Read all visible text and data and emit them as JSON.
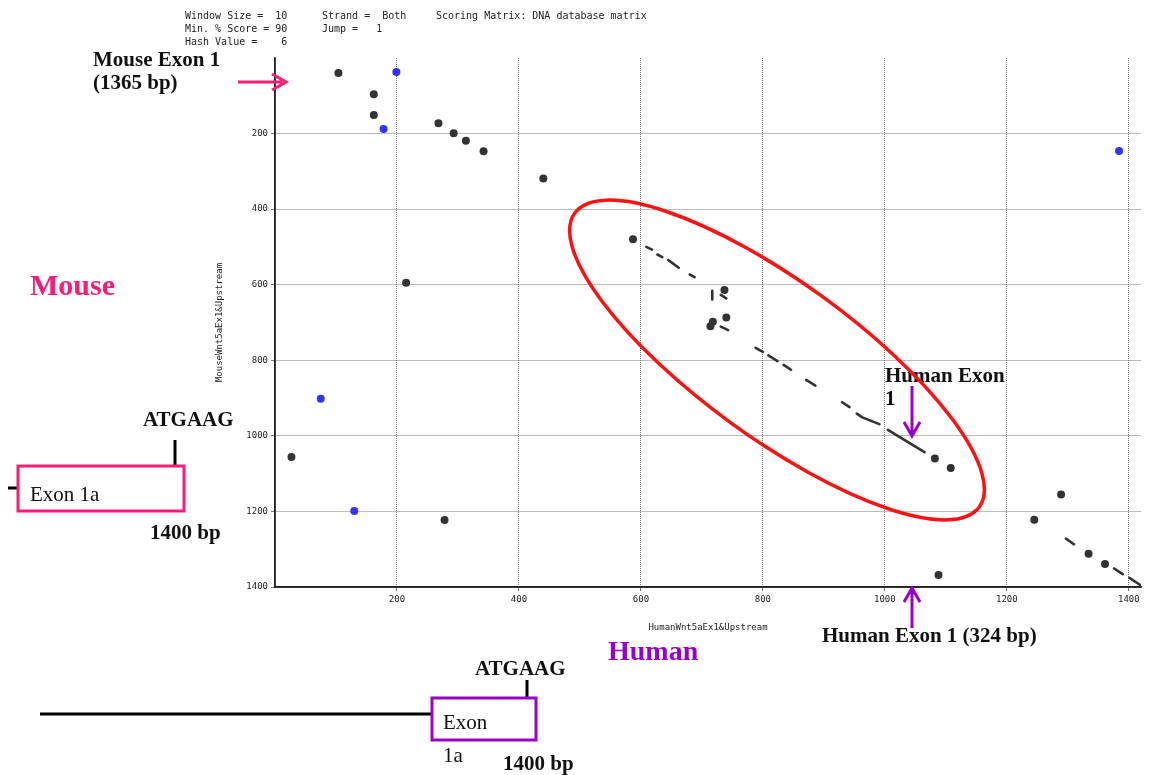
{
  "chart_data": {
    "type": "scatter",
    "xlabel": "HumanWnt5aEx1&Upstream",
    "ylabel": "MouseWnt5aEx1&Upstream",
    "xlim": [
      0,
      1420
    ],
    "ylim": [
      1400,
      0
    ],
    "xticks": [
      200,
      400,
      600,
      800,
      1000,
      1200,
      1400
    ],
    "yticks": [
      200,
      400,
      600,
      800,
      1000,
      1200,
      1400
    ],
    "grid": true,
    "series": [
      {
        "type": "scatter",
        "marker": "circle",
        "color": "#333333",
        "x": [
          104,
          162,
          313,
          342,
          440,
          215,
          27,
          278,
          737,
          714,
          718,
          740,
          1082,
          1289,
          1334,
          1088,
          162,
          268,
          293,
          587,
          1108,
          1245,
          1361
        ],
        "values": [
          40,
          151,
          219,
          247,
          319,
          595,
          1056,
          1223,
          614,
          710,
          698,
          687,
          1060,
          1155,
          1312,
          1368,
          96,
          173,
          199,
          480,
          1085,
          1222,
          1339
        ]
      },
      {
        "type": "scatter",
        "marker": "circle",
        "color": "#3333ff",
        "x": [
          199,
          178,
          75,
          130,
          1384
        ],
        "values": [
          37,
          188,
          902,
          1199,
          246
        ]
      },
      {
        "type": "line",
        "color": "#333333",
        "x": [
          609,
          618,
          null,
          627,
          635,
          null,
          645,
          662,
          null,
          680,
          688,
          null,
          717,
          717,
          null,
          731,
          740,
          null,
          731,
          743,
          null,
          788,
          800,
          null,
          809,
          824,
          null,
          834,
          846,
          null,
          871,
          886,
          null,
          930,
          942,
          null,
          954,
          963,
          991,
          null,
          1005,
          1065,
          null,
          1297,
          1310,
          null,
          1376,
          1390,
          null,
          1401,
          1420
        ],
        "values": [
          500,
          507,
          null,
          520,
          527,
          null,
          535,
          555,
          null,
          573,
          580,
          null,
          616,
          639,
          null,
          627,
          636,
          null,
          711,
          720,
          null,
          767,
          778,
          null,
          787,
          802,
          null,
          812,
          825,
          null,
          852,
          867,
          null,
          911,
          924,
          null,
          941,
          951,
          969,
          null,
          984,
          1043,
          null,
          1272,
          1287,
          null,
          1351,
          1366,
          null,
          1376,
          1396
        ]
      }
    ],
    "annotations": [
      "Window Size =  10",
      "Min. % Score = 90",
      "Hash Value =    6",
      "Strand =  Both",
      "Jump =   1",
      "Scoring Matrix: DNA database matrix",
      "Mouse Exon 1 (1365 bp)",
      "Mouse",
      "ATGAAG",
      "Exon 1a",
      "1400 bp",
      "Human Exon 1",
      "Human Exon 1 (324 bp)",
      "Human",
      "ATGAAG",
      "Exon 1a",
      "1400 bp"
    ]
  }
}
